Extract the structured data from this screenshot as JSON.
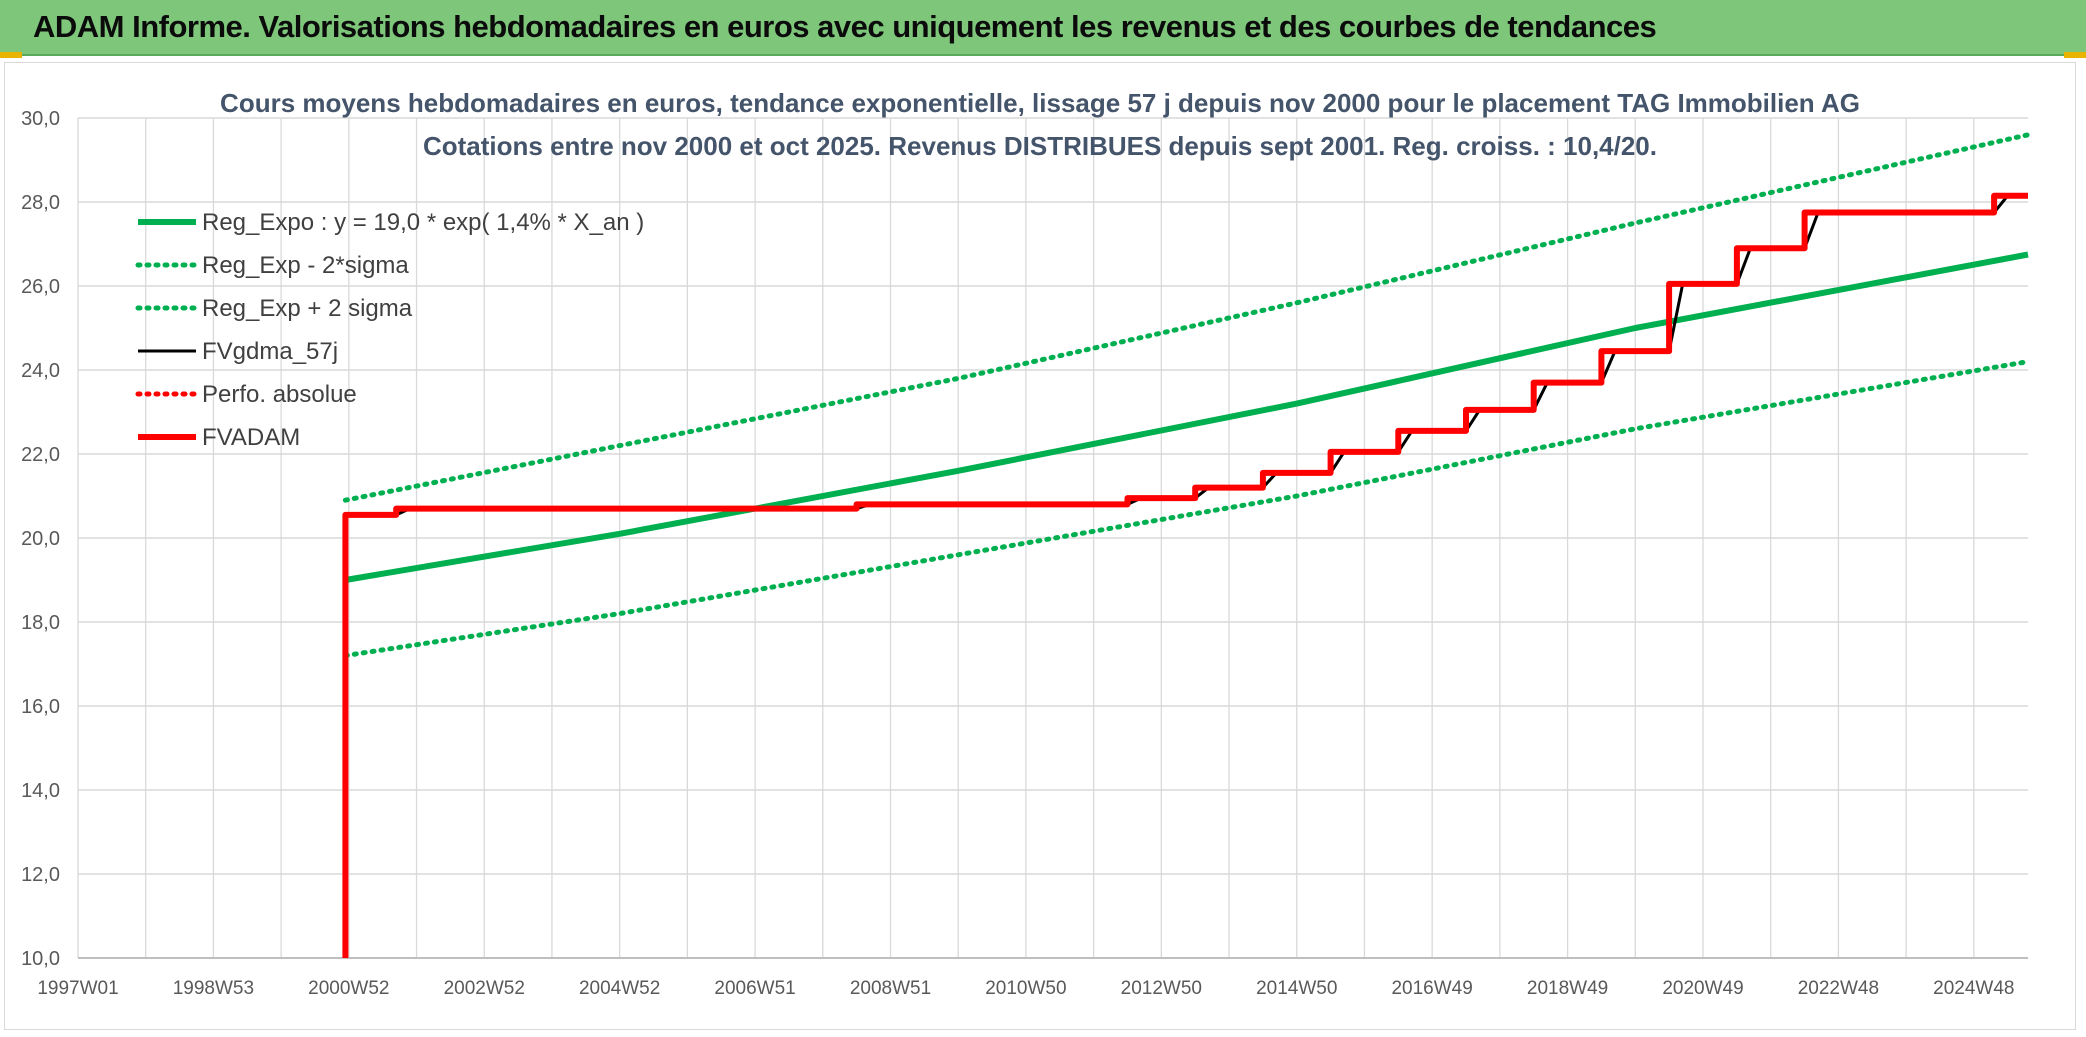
{
  "banner": {
    "title": "ADAM Informe. Valorisations hebdomadaires en euros avec uniquement les revenus et des courbes de tendances"
  },
  "colors": {
    "banner_bg": "#7dc67a",
    "green": "#00b050",
    "red": "#ff0000",
    "black": "#000000",
    "grid": "#d9d9d9",
    "title_text": "#44546a"
  },
  "chart_data": {
    "type": "line",
    "title": "Cours moyens hebdomadaires en euros, tendance exponentielle, lissage 57 j depuis nov 2000 pour le placement TAG Immobilien AG",
    "subtitle": "Cotations entre nov 2000 et oct 2025. Revenus DISTRIBUES depuis sept 2001. Reg. croiss. : 10,4/20.",
    "xlabel": "",
    "ylabel": "",
    "x_range": [
      1997.0,
      2025.8
    ],
    "ylim": [
      10,
      30
    ],
    "y_ticks": [
      10,
      12,
      14,
      16,
      18,
      20,
      22,
      24,
      26,
      28,
      30
    ],
    "y_tick_labels": [
      "10,0",
      "12,0",
      "14,0",
      "16,0",
      "18,0",
      "20,0",
      "22,0",
      "24,0",
      "26,0",
      "28,0",
      "30,0"
    ],
    "x_ticks": [
      {
        "label": "1997W01",
        "x": 1997.0
      },
      {
        "label": "1998W53",
        "x": 1999.0
      },
      {
        "label": "2000W52",
        "x": 2001.0
      },
      {
        "label": "2002W52",
        "x": 2003.0
      },
      {
        "label": "2004W52",
        "x": 2005.0
      },
      {
        "label": "2006W51",
        "x": 2007.0
      },
      {
        "label": "2008W51",
        "x": 2009.0
      },
      {
        "label": "2010W50",
        "x": 2011.0
      },
      {
        "label": "2012W50",
        "x": 2013.0
      },
      {
        "label": "2014W50",
        "x": 2015.0
      },
      {
        "label": "2016W49",
        "x": 2017.0
      },
      {
        "label": "2018W49",
        "x": 2019.0
      },
      {
        "label": "2020W49",
        "x": 2021.0
      },
      {
        "label": "2022W48",
        "x": 2023.0
      },
      {
        "label": "2024W48",
        "x": 2025.0
      }
    ],
    "grid": true,
    "legend_position": "top-left",
    "series": [
      {
        "name": "Reg_Expo : y = 19,0 * exp( 1,4% *  X_an )",
        "style": "solid-thick",
        "color": "#00b050",
        "x": [
          2000.95,
          2005.0,
          2010.0,
          2015.0,
          2020.0,
          2025.8
        ],
        "y": [
          19.0,
          20.1,
          21.6,
          23.2,
          25.0,
          26.75
        ]
      },
      {
        "name": "Reg_Exp - 2*sigma",
        "style": "dotted",
        "color": "#00b050",
        "x": [
          2000.95,
          2005.0,
          2010.0,
          2015.0,
          2020.0,
          2025.8
        ],
        "y": [
          17.2,
          18.2,
          19.6,
          21.0,
          22.6,
          24.2
        ]
      },
      {
        "name": "Reg_Exp + 2 sigma",
        "style": "dotted",
        "color": "#00b050",
        "x": [
          2000.95,
          2005.0,
          2010.0,
          2015.0,
          2020.0,
          2025.8
        ],
        "y": [
          20.9,
          22.2,
          23.8,
          25.6,
          27.5,
          29.6
        ]
      },
      {
        "name": "FVgdma_57j",
        "style": "solid",
        "color": "#000000",
        "x": [
          2000.95,
          2001.0,
          2001.7,
          2001.9,
          2008.5,
          2008.7,
          2012.5,
          2012.7,
          2013.5,
          2013.7,
          2014.5,
          2014.7,
          2015.5,
          2015.7,
          2016.5,
          2016.7,
          2017.5,
          2017.7,
          2018.5,
          2018.7,
          2019.5,
          2019.7,
          2020.5,
          2020.7,
          2021.5,
          2021.7,
          2022.5,
          2022.7,
          2025.3,
          2025.5,
          2025.8
        ],
        "y": [
          20.55,
          20.55,
          20.55,
          20.7,
          20.7,
          20.8,
          20.8,
          20.95,
          20.95,
          21.2,
          21.2,
          21.55,
          21.55,
          22.05,
          22.05,
          22.55,
          22.55,
          23.05,
          23.05,
          23.7,
          23.7,
          24.45,
          24.45,
          26.05,
          26.05,
          26.9,
          26.9,
          27.75,
          27.75,
          28.15,
          28.15
        ]
      },
      {
        "name": "Perfo. absolue",
        "style": "dotted",
        "color": "#ff0000",
        "x": [],
        "y": []
      },
      {
        "name": "FVADAM",
        "style": "solid-thick",
        "color": "#ff0000",
        "x": [
          2000.95,
          2000.95,
          2001.7,
          2001.7,
          2008.5,
          2008.5,
          2012.5,
          2012.5,
          2013.5,
          2013.5,
          2014.5,
          2014.5,
          2015.5,
          2015.5,
          2016.5,
          2016.5,
          2017.5,
          2017.5,
          2018.5,
          2018.5,
          2019.5,
          2019.5,
          2020.5,
          2020.5,
          2021.5,
          2021.5,
          2022.5,
          2022.5,
          2025.3,
          2025.3,
          2025.8
        ],
        "y": [
          10.0,
          20.55,
          20.55,
          20.7,
          20.7,
          20.8,
          20.8,
          20.95,
          20.95,
          21.2,
          21.2,
          21.55,
          21.55,
          22.05,
          22.05,
          22.55,
          22.55,
          23.05,
          23.05,
          23.7,
          23.7,
          24.45,
          24.45,
          26.05,
          26.05,
          26.9,
          26.9,
          27.75,
          27.75,
          28.15,
          28.15
        ]
      }
    ]
  }
}
